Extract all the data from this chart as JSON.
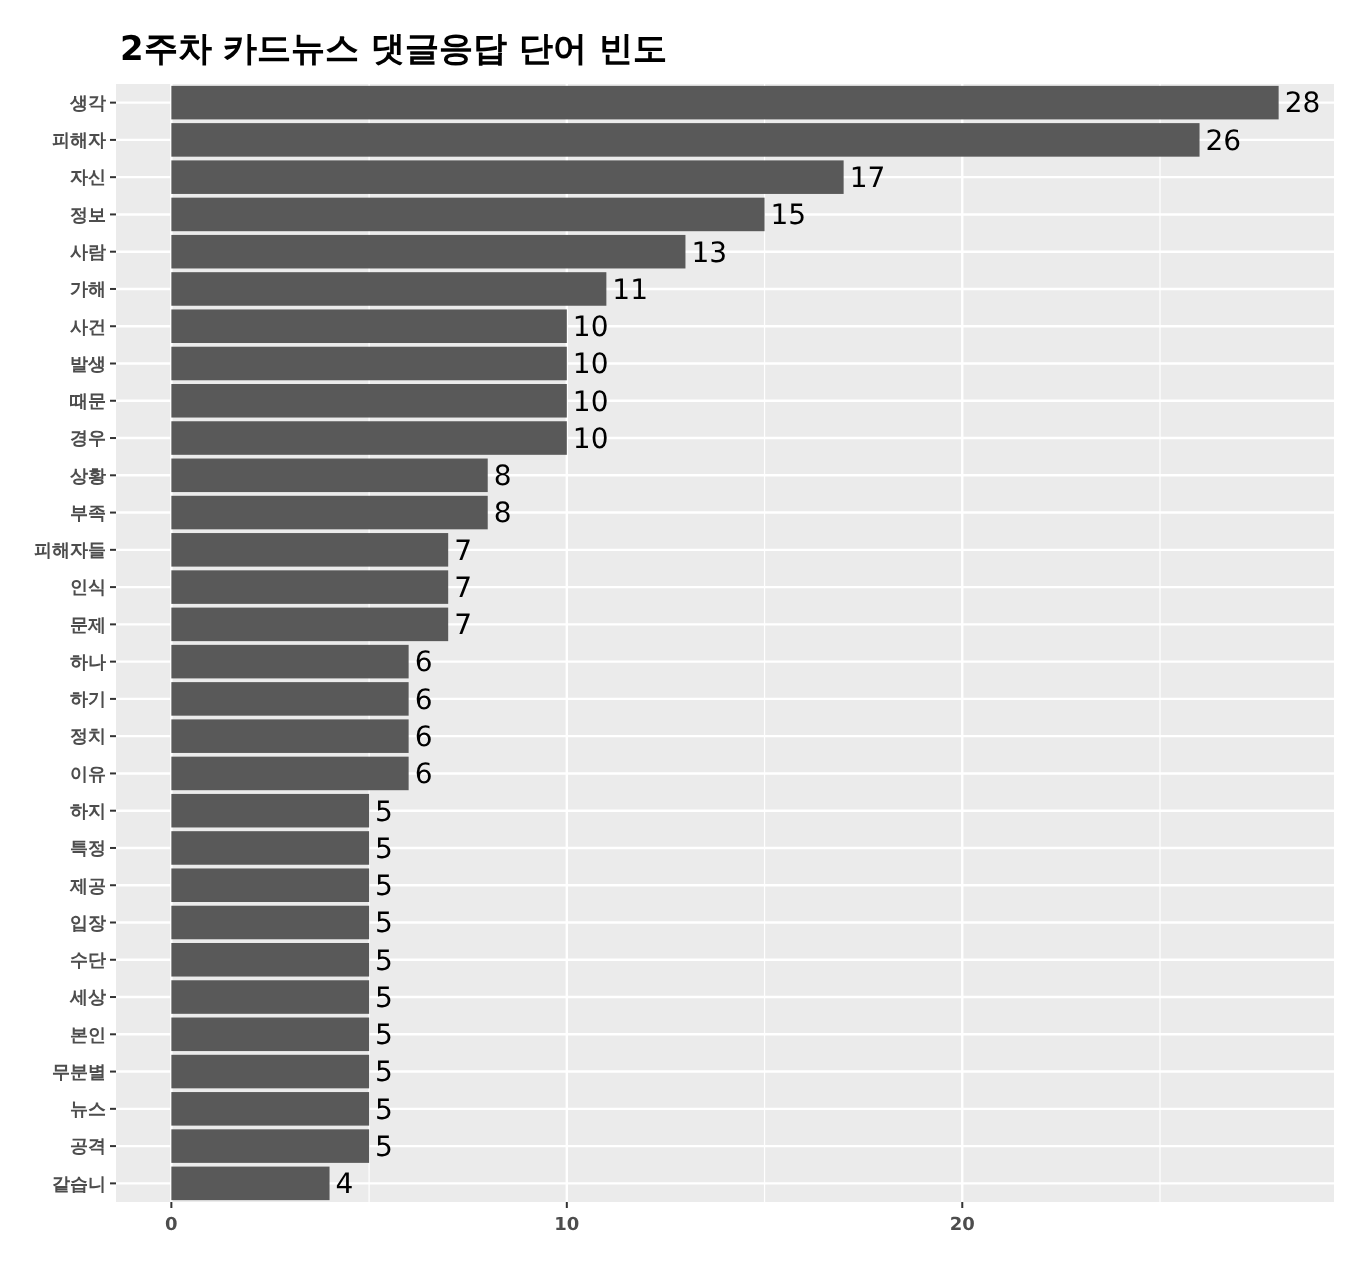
{
  "chart_data": {
    "type": "bar",
    "orientation": "horizontal",
    "title": "2주차 카드뉴스 댓글응답 단어 빈도",
    "categories": [
      "생각",
      "피해자",
      "자신",
      "정보",
      "사람",
      "가해",
      "사건",
      "발생",
      "때문",
      "경우",
      "상황",
      "부족",
      "피해자들",
      "인식",
      "문제",
      "하나",
      "하기",
      "정치",
      "이유",
      "하지",
      "특정",
      "제공",
      "입장",
      "수단",
      "세상",
      "본인",
      "무분별",
      "뉴스",
      "공격",
      "같습니"
    ],
    "values": [
      28,
      26,
      17,
      15,
      13,
      11,
      10,
      10,
      10,
      10,
      8,
      8,
      7,
      7,
      7,
      6,
      6,
      6,
      6,
      5,
      5,
      5,
      5,
      5,
      5,
      5,
      5,
      5,
      5,
      4
    ],
    "color": "#595959",
    "xlim": [
      -1.4,
      29.4
    ],
    "xticks": [
      0,
      {
        "value": 5,
        "label": null
      },
      10,
      {
        "value": 15,
        "label": null
      },
      20,
      {
        "value": 25,
        "label": null
      }
    ],
    "grid": true,
    "data_labels": true
  }
}
